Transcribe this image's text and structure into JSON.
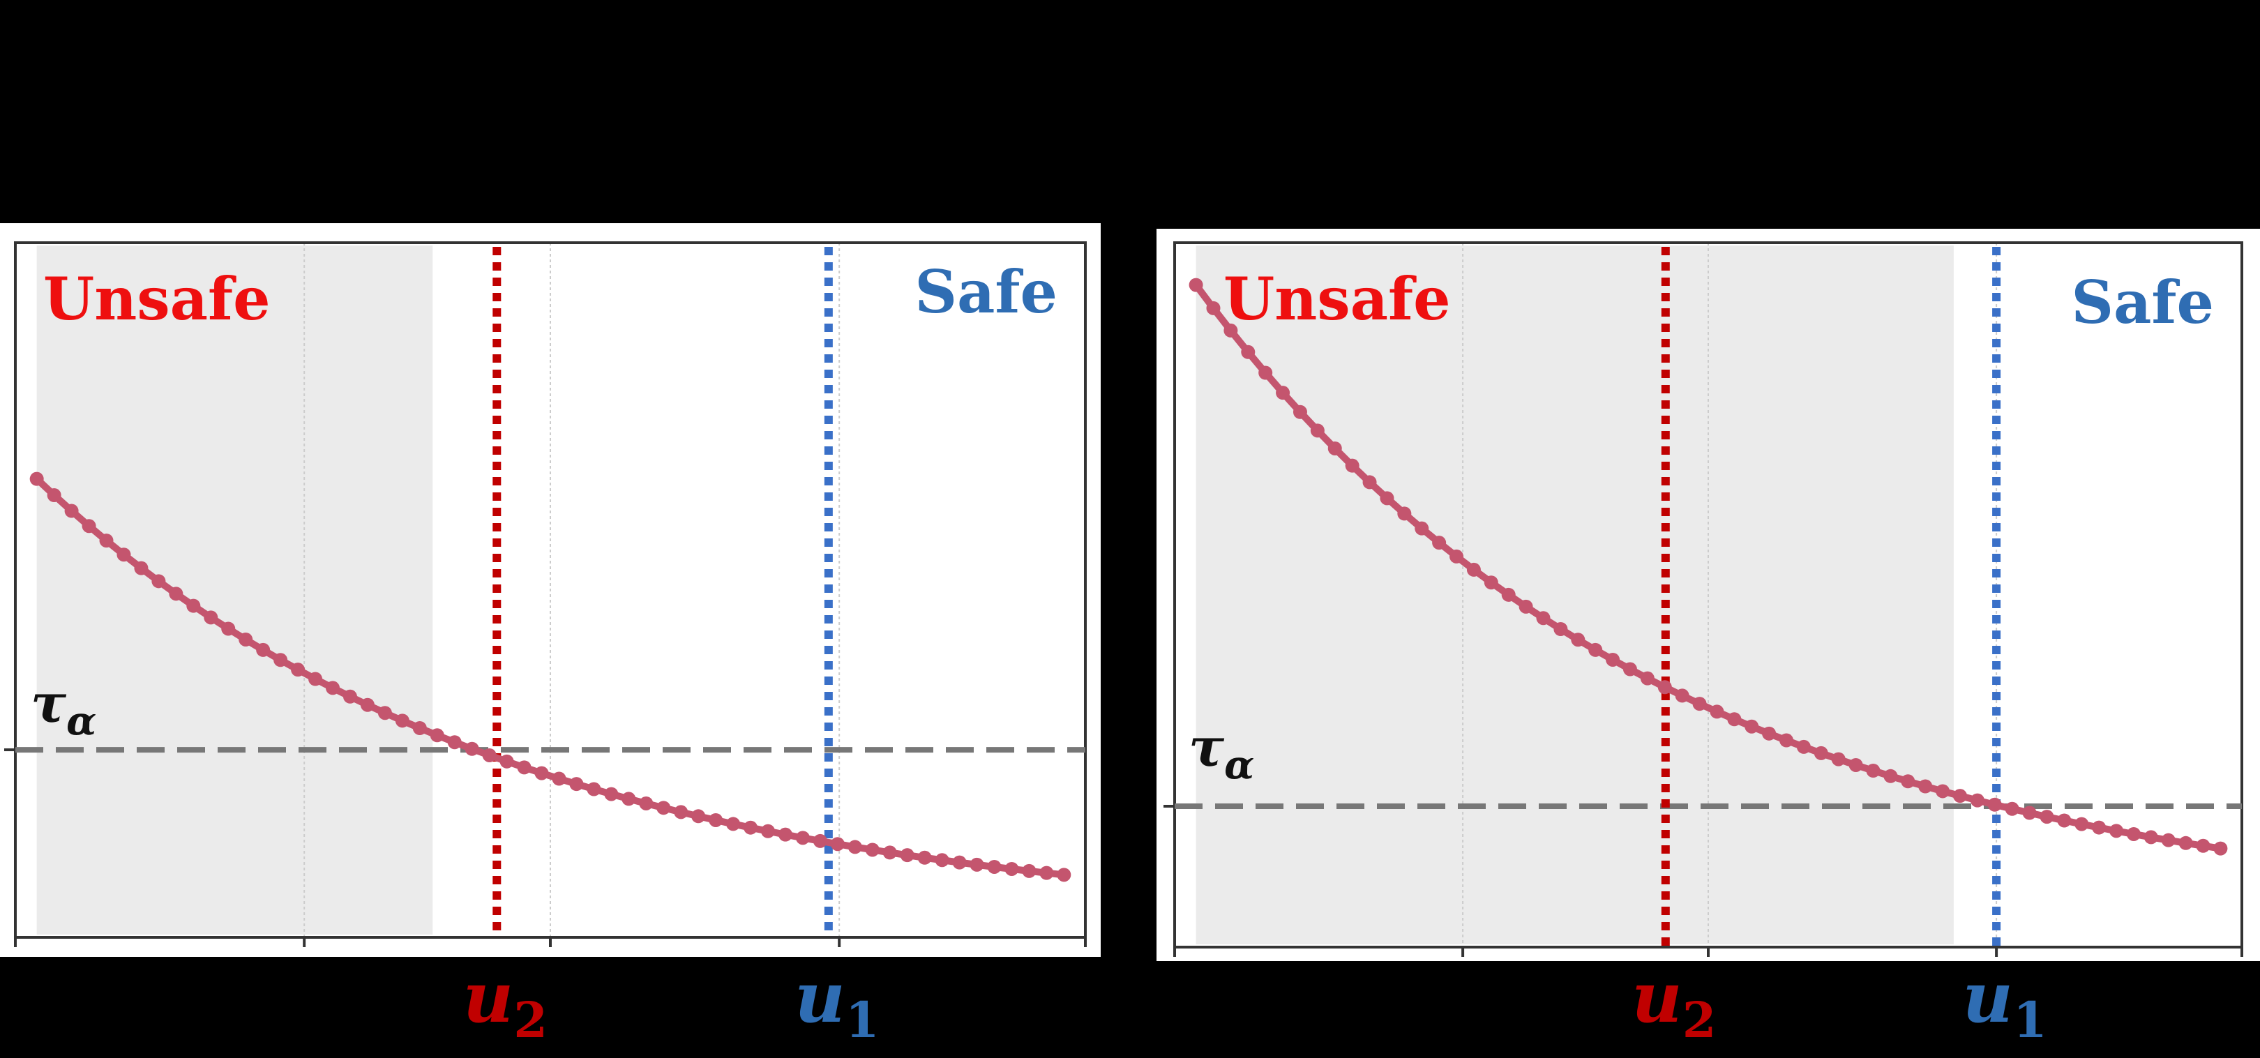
{
  "colors": {
    "background": "#000000",
    "panel_bg": "#ffffff",
    "shade": "#ebebeb",
    "curve": "#c4556e",
    "unsafe": "#ee0f0f",
    "safe": "#2f6db3",
    "u2_line": "#c00000",
    "u1_line": "#3a70c8",
    "threshold": "#777777",
    "grid": "#cccccc"
  },
  "labels": {
    "unsafe": "Unsafe",
    "safe": "Safe",
    "tau": "τ",
    "tau_sub": "α",
    "u": "u",
    "u1_sub": "1",
    "u2_sub": "2"
  },
  "chart_data": [
    {
      "type": "line",
      "title": "",
      "xlabel": "",
      "ylabel": "",
      "xlim": [
        0,
        1
      ],
      "ylim": [
        0,
        1
      ],
      "grid": "vertical",
      "series": [
        {
          "x_start": 0.02,
          "x_end": 0.98,
          "points": 60,
          "y_start": 0.66,
          "y_end": 0.09
        }
      ],
      "threshold_y": 0.27,
      "shade_x": [
        0.02,
        0.39
      ],
      "markers": {
        "u2": 0.45,
        "u1": 0.76
      },
      "regions": {
        "unsafe": "top-left",
        "safe": "top-right"
      }
    },
    {
      "type": "line",
      "title": "",
      "xlabel": "",
      "ylabel": "",
      "xlim": [
        0,
        1
      ],
      "ylim": [
        0,
        1
      ],
      "grid": "vertical",
      "series": [
        {
          "x_start": 0.02,
          "x_end": 0.98,
          "points": 60,
          "y_start": 0.94,
          "y_end": 0.14
        }
      ],
      "threshold_y": 0.2,
      "shade_x": [
        0.02,
        0.73
      ],
      "markers": {
        "u2": 0.46,
        "u1": 0.77
      },
      "regions": {
        "unsafe": "top-left",
        "safe": "top-right"
      }
    }
  ]
}
